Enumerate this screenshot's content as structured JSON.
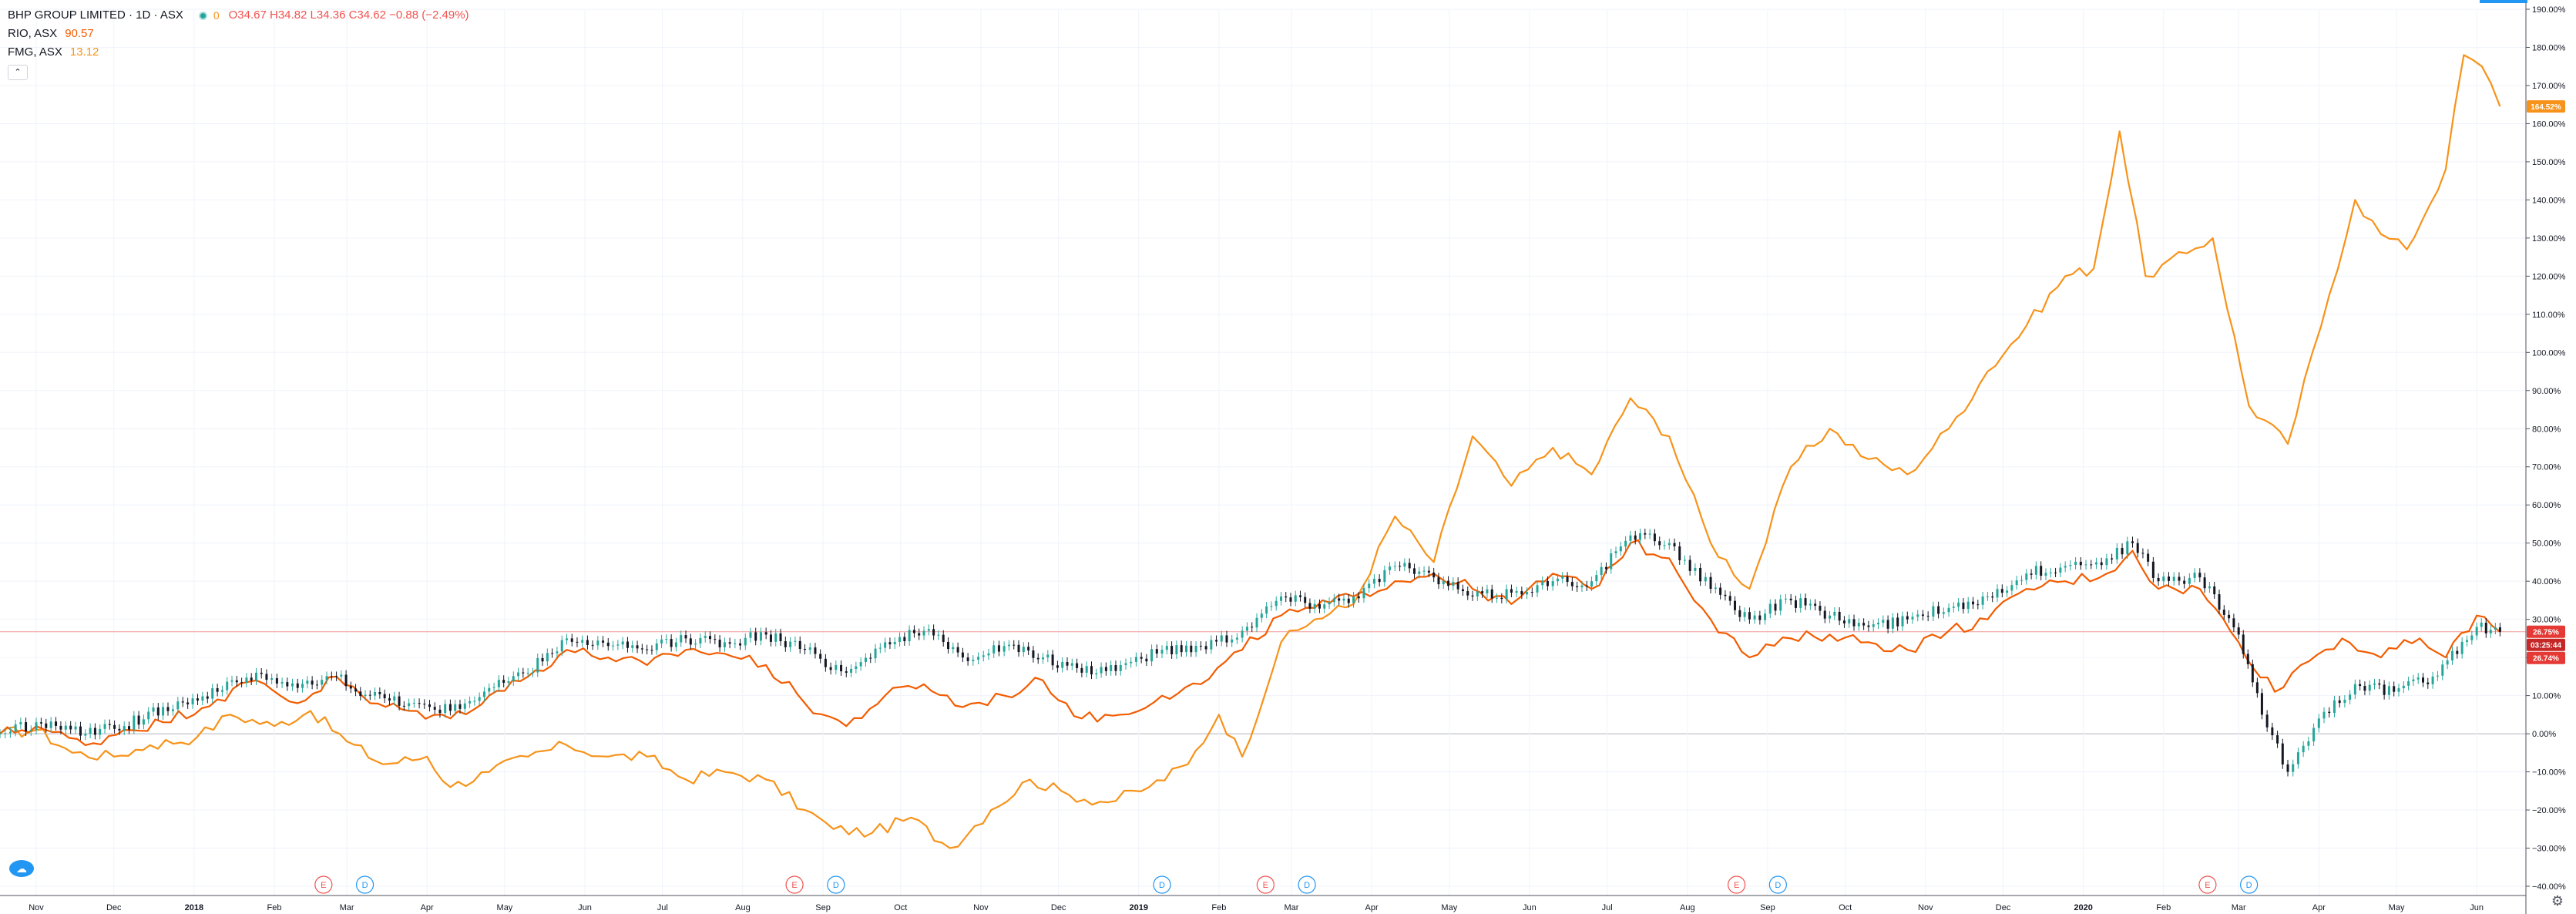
{
  "legend": {
    "symbol": "BHP GROUP LIMITED · 1D · ASX",
    "ohlc": "O34.67 H34.82 L34.36 C34.62 −0.88 (−2.49%)",
    "zero_label": "0",
    "rio_label": "RIO, ASX",
    "rio_value": "90.57",
    "fmg_label": "FMG, ASX",
    "fmg_value": "13.12",
    "collapse_icon": "chevron-up-icon"
  },
  "price_tags": {
    "rio": "26.75%",
    "countdown": "03:25:44",
    "bhp": "26.74%",
    "fmg": "164.52%"
  },
  "colors": {
    "bhp_up": "#26a69a",
    "bhp_down": "#131722",
    "rio": "#f35c00",
    "fmg": "#f7931a",
    "tag_red": "#e53935",
    "grid": "#f0f3fa",
    "event_earnings": "#ef5350",
    "event_dividend": "#2196f3"
  },
  "chart_data": {
    "type": "line",
    "ylim": [
      -40,
      190
    ],
    "y_ticks": [
      -40,
      -30,
      -20,
      -10,
      0,
      10,
      20,
      30,
      40,
      50,
      60,
      70,
      80,
      90,
      100,
      110,
      120,
      130,
      140,
      150,
      160,
      170,
      180,
      190
    ],
    "y_tick_format": "percent",
    "x_ticks": [
      "Nov",
      "Dec",
      "2018",
      "Feb",
      "Mar",
      "Apr",
      "May",
      "Jun",
      "Jul",
      "Aug",
      "Sep",
      "Oct",
      "Nov",
      "Dec",
      "2019",
      "Feb",
      "Mar",
      "Apr",
      "May",
      "Jun",
      "Jul",
      "Aug",
      "Sep",
      "Oct",
      "Nov",
      "Dec",
      "2020",
      "Feb",
      "Mar",
      "Apr",
      "May",
      "Jun"
    ],
    "x_start": "2017-10-18",
    "x_end": "2020-06-20",
    "series": [
      {
        "name": "FMG, ASX",
        "style": "line",
        "points": [
          [
            "2017-10-18",
            0
          ],
          [
            "2017-11-01",
            1
          ],
          [
            "2017-11-15",
            -5
          ],
          [
            "2017-12-01",
            -6
          ],
          [
            "2017-12-15",
            -3
          ],
          [
            "2018-01-02",
            -1
          ],
          [
            "2018-01-15",
            5
          ],
          [
            "2018-02-01",
            2
          ],
          [
            "2018-02-15",
            6
          ],
          [
            "2018-03-01",
            -2
          ],
          [
            "2018-03-15",
            -8
          ],
          [
            "2018-04-01",
            -6
          ],
          [
            "2018-04-10",
            -14
          ],
          [
            "2018-04-25",
            -10
          ],
          [
            "2018-05-10",
            -6
          ],
          [
            "2018-05-25",
            -3
          ],
          [
            "2018-06-10",
            -6
          ],
          [
            "2018-06-25",
            -6
          ],
          [
            "2018-07-10",
            -12
          ],
          [
            "2018-07-25",
            -10
          ],
          [
            "2018-08-10",
            -12
          ],
          [
            "2018-08-25",
            -20
          ],
          [
            "2018-09-05",
            -25
          ],
          [
            "2018-09-20",
            -26
          ],
          [
            "2018-10-05",
            -22
          ],
          [
            "2018-10-20",
            -30
          ],
          [
            "2018-11-05",
            -20
          ],
          [
            "2018-11-20",
            -12
          ],
          [
            "2018-12-05",
            -16
          ],
          [
            "2018-12-20",
            -18
          ],
          [
            "2019-01-05",
            -14
          ],
          [
            "2019-01-20",
            -8
          ],
          [
            "2019-02-01",
            5
          ],
          [
            "2019-02-10",
            -6
          ],
          [
            "2019-02-25",
            24
          ],
          [
            "2019-03-10",
            30
          ],
          [
            "2019-03-25",
            34
          ],
          [
            "2019-04-10",
            57
          ],
          [
            "2019-04-25",
            45
          ],
          [
            "2019-05-10",
            78
          ],
          [
            "2019-05-25",
            65
          ],
          [
            "2019-06-10",
            75
          ],
          [
            "2019-06-25",
            68
          ],
          [
            "2019-07-10",
            88
          ],
          [
            "2019-07-25",
            78
          ],
          [
            "2019-08-10",
            50
          ],
          [
            "2019-08-25",
            38
          ],
          [
            "2019-09-10",
            70
          ],
          [
            "2019-09-25",
            80
          ],
          [
            "2019-10-10",
            72
          ],
          [
            "2019-10-25",
            68
          ],
          [
            "2019-11-10",
            80
          ],
          [
            "2019-11-25",
            95
          ],
          [
            "2019-12-10",
            107
          ],
          [
            "2019-12-25",
            120
          ],
          [
            "2020-01-05",
            122
          ],
          [
            "2020-01-15",
            158
          ],
          [
            "2020-01-25",
            120
          ],
          [
            "2020-02-10",
            126
          ],
          [
            "2020-02-20",
            130
          ],
          [
            "2020-03-05",
            86
          ],
          [
            "2020-03-20",
            76
          ],
          [
            "2020-04-05",
            115
          ],
          [
            "2020-04-15",
            140
          ],
          [
            "2020-04-25",
            131
          ],
          [
            "2020-05-05",
            127
          ],
          [
            "2020-05-20",
            148
          ],
          [
            "2020-05-27",
            178
          ],
          [
            "2020-06-03",
            175
          ],
          [
            "2020-06-10",
            164.52
          ]
        ]
      },
      {
        "name": "RIO, ASX",
        "style": "line",
        "points": [
          [
            "2017-10-18",
            0
          ],
          [
            "2017-11-01",
            2
          ],
          [
            "2017-11-20",
            -3
          ],
          [
            "2017-12-05",
            1
          ],
          [
            "2017-12-20",
            3
          ],
          [
            "2018-01-10",
            9
          ],
          [
            "2018-01-25",
            14
          ],
          [
            "2018-02-10",
            8
          ],
          [
            "2018-02-25",
            15
          ],
          [
            "2018-03-10",
            8
          ],
          [
            "2018-03-25",
            6
          ],
          [
            "2018-04-10",
            4
          ],
          [
            "2018-04-25",
            10
          ],
          [
            "2018-05-10",
            15
          ],
          [
            "2018-05-25",
            22
          ],
          [
            "2018-06-10",
            20
          ],
          [
            "2018-06-25",
            18
          ],
          [
            "2018-07-10",
            22
          ],
          [
            "2018-07-25",
            21
          ],
          [
            "2018-08-10",
            18
          ],
          [
            "2018-08-25",
            8
          ],
          [
            "2018-09-10",
            2
          ],
          [
            "2018-09-25",
            10
          ],
          [
            "2018-10-10",
            13
          ],
          [
            "2018-10-25",
            7
          ],
          [
            "2018-11-10",
            10
          ],
          [
            "2018-11-25",
            14
          ],
          [
            "2018-12-10",
            4
          ],
          [
            "2018-12-25",
            5
          ],
          [
            "2019-01-10",
            10
          ],
          [
            "2019-01-25",
            13
          ],
          [
            "2019-02-10",
            22
          ],
          [
            "2019-02-25",
            31
          ],
          [
            "2019-03-10",
            33
          ],
          [
            "2019-03-25",
            36
          ],
          [
            "2019-04-10",
            40
          ],
          [
            "2019-04-25",
            42
          ],
          [
            "2019-05-10",
            38
          ],
          [
            "2019-05-25",
            34
          ],
          [
            "2019-06-10",
            42
          ],
          [
            "2019-06-25",
            38
          ],
          [
            "2019-07-10",
            50
          ],
          [
            "2019-07-25",
            46
          ],
          [
            "2019-08-10",
            30
          ],
          [
            "2019-08-25",
            20
          ],
          [
            "2019-09-10",
            25
          ],
          [
            "2019-09-25",
            26
          ],
          [
            "2019-10-10",
            24
          ],
          [
            "2019-10-25",
            22
          ],
          [
            "2019-11-10",
            27
          ],
          [
            "2019-11-25",
            30
          ],
          [
            "2019-12-10",
            38
          ],
          [
            "2019-12-25",
            40
          ],
          [
            "2020-01-10",
            42
          ],
          [
            "2020-01-20",
            48
          ],
          [
            "2020-01-30",
            38
          ],
          [
            "2020-02-15",
            38
          ],
          [
            "2020-03-01",
            24
          ],
          [
            "2020-03-15",
            11
          ],
          [
            "2020-03-25",
            18
          ],
          [
            "2020-04-10",
            25
          ],
          [
            "2020-04-25",
            20
          ],
          [
            "2020-05-10",
            25
          ],
          [
            "2020-05-20",
            20
          ],
          [
            "2020-06-01",
            31
          ],
          [
            "2020-06-10",
            26.75
          ]
        ]
      },
      {
        "name": "BHP GROUP LIMITED",
        "style": "candles",
        "points": [
          [
            "2017-10-18",
            0
          ],
          [
            "2017-11-01",
            3
          ],
          [
            "2017-11-20",
            0
          ],
          [
            "2017-12-05",
            2
          ],
          [
            "2017-12-20",
            7
          ],
          [
            "2018-01-10",
            11
          ],
          [
            "2018-01-25",
            16
          ],
          [
            "2018-02-10",
            12
          ],
          [
            "2018-02-25",
            15
          ],
          [
            "2018-03-10",
            10
          ],
          [
            "2018-03-25",
            8
          ],
          [
            "2018-04-10",
            6
          ],
          [
            "2018-04-25",
            12
          ],
          [
            "2018-05-10",
            16
          ],
          [
            "2018-05-25",
            25
          ],
          [
            "2018-06-10",
            23
          ],
          [
            "2018-06-25",
            22
          ],
          [
            "2018-07-10",
            25
          ],
          [
            "2018-07-25",
            24
          ],
          [
            "2018-08-10",
            26
          ],
          [
            "2018-08-25",
            22
          ],
          [
            "2018-09-10",
            16
          ],
          [
            "2018-09-25",
            24
          ],
          [
            "2018-10-10",
            27
          ],
          [
            "2018-10-25",
            20
          ],
          [
            "2018-11-10",
            23
          ],
          [
            "2018-11-25",
            20
          ],
          [
            "2018-12-10",
            16
          ],
          [
            "2018-12-25",
            18
          ],
          [
            "2019-01-10",
            22
          ],
          [
            "2019-01-25",
            23
          ],
          [
            "2019-02-10",
            27
          ],
          [
            "2019-02-25",
            36
          ],
          [
            "2019-03-10",
            34
          ],
          [
            "2019-03-25",
            36
          ],
          [
            "2019-04-10",
            44
          ],
          [
            "2019-04-25",
            41
          ],
          [
            "2019-05-10",
            36
          ],
          [
            "2019-05-25",
            37
          ],
          [
            "2019-06-10",
            40
          ],
          [
            "2019-06-25",
            40
          ],
          [
            "2019-07-10",
            52
          ],
          [
            "2019-07-25",
            50
          ],
          [
            "2019-08-10",
            38
          ],
          [
            "2019-08-25",
            30
          ],
          [
            "2019-09-10",
            35
          ],
          [
            "2019-09-25",
            31
          ],
          [
            "2019-10-10",
            28
          ],
          [
            "2019-10-25",
            30
          ],
          [
            "2019-11-10",
            33
          ],
          [
            "2019-11-25",
            36
          ],
          [
            "2019-12-10",
            42
          ],
          [
            "2019-12-25",
            44
          ],
          [
            "2020-01-10",
            46
          ],
          [
            "2020-01-20",
            50
          ],
          [
            "2020-01-30",
            40
          ],
          [
            "2020-02-15",
            41
          ],
          [
            "2020-03-01",
            26
          ],
          [
            "2020-03-10",
            5
          ],
          [
            "2020-03-20",
            -10
          ],
          [
            "2020-04-01",
            4
          ],
          [
            "2020-04-15",
            13
          ],
          [
            "2020-04-30",
            11
          ],
          [
            "2020-05-15",
            15
          ],
          [
            "2020-06-01",
            28
          ],
          [
            "2020-06-10",
            26.74
          ]
        ]
      }
    ],
    "events": [
      {
        "type": "E",
        "date": "2018-02-20"
      },
      {
        "type": "D",
        "date": "2018-03-08"
      },
      {
        "type": "E",
        "date": "2018-08-21"
      },
      {
        "type": "D",
        "date": "2018-09-06"
      },
      {
        "type": "D",
        "date": "2019-01-10"
      },
      {
        "type": "E",
        "date": "2019-02-19"
      },
      {
        "type": "D",
        "date": "2019-03-07"
      },
      {
        "type": "E",
        "date": "2019-08-20"
      },
      {
        "type": "D",
        "date": "2019-09-05"
      },
      {
        "type": "E",
        "date": "2020-02-18"
      },
      {
        "type": "D",
        "date": "2020-03-05"
      }
    ]
  }
}
